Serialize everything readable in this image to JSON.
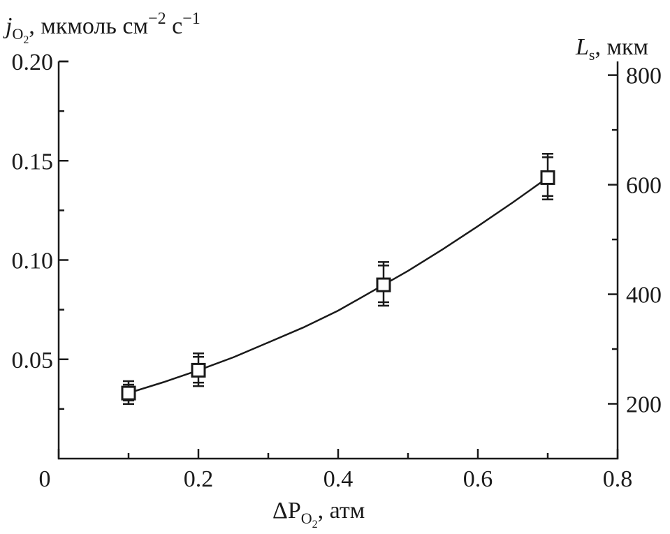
{
  "chart_data": {
    "type": "scatter",
    "xlabel": "ΔP",
    "xlabel_sub": "O",
    "xlabel_sub2": "2",
    "xlabel_unit": ", атм",
    "ylabel": "j",
    "ylabel_sub": "O",
    "ylabel_sub2": "2",
    "ylabel_unit": ", мкмоль см",
    "ylabel_sup1": "−2",
    "ylabel_mid": " с",
    "ylabel_sup2": "−1",
    "y2label": "L",
    "y2label_sub": "s",
    "y2label_unit": ", мкм",
    "xlim": [
      0,
      0.8
    ],
    "ylim": [
      0,
      0.2
    ],
    "y2lim": [
      100,
      825
    ],
    "x_ticks": [
      0,
      0.2,
      0.4,
      0.6,
      0.8
    ],
    "x_tick_labels": [
      "0",
      "0.2",
      "0.4",
      "0.6",
      "0.8"
    ],
    "y_ticks": [
      0.05,
      0.1,
      0.15,
      0.2
    ],
    "y_tick_labels": [
      "0.05",
      "0.10",
      "0.15",
      "0.20"
    ],
    "y2_ticks": [
      200,
      400,
      600,
      800
    ],
    "y2_tick_labels": [
      "200",
      "400",
      "600",
      "800"
    ],
    "grid": false,
    "series": [
      {
        "marker": "open-square",
        "x": [
          0.1,
          0.2,
          0.465,
          0.7
        ],
        "y": [
          0.033,
          0.0445,
          0.0875,
          0.1415
        ],
        "y_err_low": [
          0.0055,
          0.008,
          0.0105,
          0.011
        ],
        "y_err_high": [
          0.006,
          0.0085,
          0.0115,
          0.012
        ]
      }
    ],
    "fit_curve": {
      "x": [
        0.1,
        0.15,
        0.2,
        0.25,
        0.3,
        0.35,
        0.4,
        0.465,
        0.5,
        0.55,
        0.6,
        0.65,
        0.7
      ],
      "y": [
        0.033,
        0.0385,
        0.0445,
        0.051,
        0.0585,
        0.066,
        0.0745,
        0.0875,
        0.0945,
        0.1055,
        0.117,
        0.129,
        0.1415
      ]
    }
  }
}
